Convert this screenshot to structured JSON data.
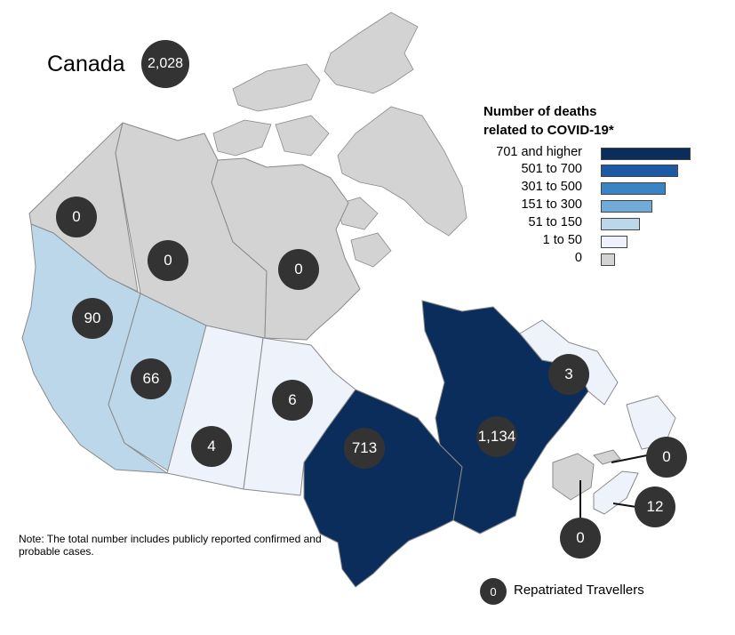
{
  "title": "Canada",
  "total": "2,028",
  "legend": {
    "title_line1": "Number of deaths",
    "title_line2": "related to COVID-19*",
    "items": [
      {
        "label": "701 and higher",
        "color": "#0b2d5b"
      },
      {
        "label": "501 to 700",
        "color": "#1c5aa6"
      },
      {
        "label": "301 to 500",
        "color": "#3b84c4"
      },
      {
        "label": "151 to 300",
        "color": "#72abd8"
      },
      {
        "label": "51 to 150",
        "color": "#bcd7ea"
      },
      {
        "label": "1 to 50",
        "color": "#eef2fb"
      },
      {
        "label": "0",
        "color": "#d3d3d3"
      }
    ]
  },
  "regions": {
    "yukon": {
      "deaths": "0"
    },
    "northwest_territories": {
      "deaths": "0"
    },
    "nunavut": {
      "deaths": "0"
    },
    "british_columbia": {
      "deaths": "90"
    },
    "alberta": {
      "deaths": "66"
    },
    "saskatchewan": {
      "deaths": "4"
    },
    "manitoba": {
      "deaths": "6"
    },
    "ontario": {
      "deaths": "713"
    },
    "quebec": {
      "deaths": "1,134"
    },
    "newfoundland_and_labrador": {
      "deaths": "3"
    },
    "prince_edward_island": {
      "deaths": "0"
    },
    "nova_scotia": {
      "deaths": "12"
    },
    "new_brunswick": {
      "deaths": "0"
    }
  },
  "note": "Note: The total number includes publicly reported confirmed and probable cases.",
  "repatriated": {
    "count": "0",
    "label": "Repatriated Travellers"
  }
}
